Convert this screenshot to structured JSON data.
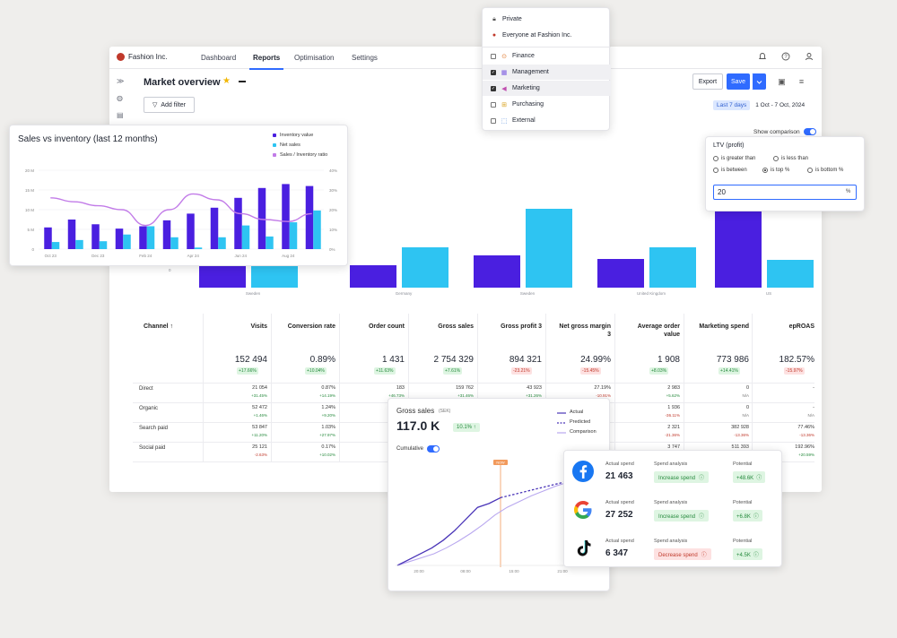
{
  "app": {
    "brand": "Fashion Inc.",
    "nav": [
      "Dashboard",
      "Reports",
      "Optimisation",
      "Settings"
    ],
    "active_nav": "Reports",
    "page_title": "Market overview",
    "add_filter": "Add filter",
    "export": "Export",
    "save": "Save",
    "date_preset": "Last 7 days",
    "date_range": "1 Oct - 7 Oct, 2024",
    "show_comparison": "Show comparison"
  },
  "bg_chart": {
    "categories": [
      "Sweden",
      "Germany",
      "Sweden",
      "United Kingdom",
      "US"
    ],
    "y_zero_label": "0"
  },
  "visibility_menu": {
    "items": [
      {
        "label": "Private",
        "icon": "lock-icon",
        "checkbox": false,
        "checked": false
      },
      {
        "label": "Everyone at Fashion Inc.",
        "icon": "org-icon",
        "checkbox": false,
        "checked": false
      },
      {
        "label": "Finance",
        "icon": "finance-icon",
        "checkbox": true,
        "checked": false
      },
      {
        "label": "Management",
        "icon": "management-icon",
        "checkbox": true,
        "checked": true
      },
      {
        "label": "Marketing",
        "icon": "megaphone-icon",
        "checkbox": true,
        "checked": true
      },
      {
        "label": "Purchasing",
        "icon": "cart-icon",
        "checkbox": true,
        "checked": false
      },
      {
        "label": "External",
        "icon": "external-icon",
        "checkbox": true,
        "checked": false
      }
    ]
  },
  "ltv": {
    "title": "LTV (profit)",
    "options": [
      "is greater than",
      "is less than",
      "is between",
      "is top %",
      "is bottom %"
    ],
    "selected": "is top %",
    "value": "20",
    "unit": "%"
  },
  "table": {
    "headers": [
      "Channel ↑",
      "Visits",
      "Conversion rate",
      "Order count",
      "Gross sales",
      "Gross profit 3",
      "Net gross margin 3",
      "Average order value",
      "Marketing spend",
      "epROAS"
    ],
    "totals": [
      {
        "value": "152 494",
        "change": "+17.66%",
        "dir": "up"
      },
      {
        "value": "0.89%",
        "change": "+10.04%",
        "dir": "up"
      },
      {
        "value": "1 431",
        "change": "+11.63%",
        "dir": "up"
      },
      {
        "value": "2 754 329",
        "change": "+7.61%",
        "dir": "up"
      },
      {
        "value": "894 321",
        "change": "-23.21%",
        "dir": "down"
      },
      {
        "value": "24.99%",
        "change": "-15.45%",
        "dir": "down"
      },
      {
        "value": "1 908",
        "change": "+8.03%",
        "dir": "up"
      },
      {
        "value": "773 986",
        "change": "+14.41%",
        "dir": "up"
      },
      {
        "value": "182.57%",
        "change": "-15.97%",
        "dir": "down"
      }
    ],
    "rows": [
      {
        "label": "Direct",
        "cells": [
          [
            "21 054",
            "+31.45%",
            "g"
          ],
          [
            "0.87%",
            "+14.19%",
            "g"
          ],
          [
            "183",
            "+46.73%",
            "g"
          ],
          [
            "159 762",
            "+31.46%",
            "g"
          ],
          [
            "43 923",
            "+31.26%",
            "g"
          ],
          [
            "27.19%",
            "-10.91%",
            "r"
          ],
          [
            "2 983",
            "+5.62%",
            "g"
          ],
          [
            "0",
            "N/A",
            "n"
          ],
          [
            "-",
            "",
            "n"
          ]
        ]
      },
      {
        "label": "Organic",
        "cells": [
          [
            "52 472",
            "+1.46%",
            "g"
          ],
          [
            "1.24%",
            "+9.20%",
            "g"
          ],
          [
            "",
            "",
            "n"
          ],
          [
            "",
            "",
            "n"
          ],
          [
            "",
            "",
            "n"
          ],
          [
            "",
            "",
            "n"
          ],
          [
            "1 936",
            "-36.11%",
            "r"
          ],
          [
            "0",
            "N/A",
            "n"
          ],
          [
            "-",
            "N/A",
            "n"
          ]
        ]
      },
      {
        "label": "Search paid",
        "cells": [
          [
            "53 847",
            "+11.20%",
            "g"
          ],
          [
            "1.03%",
            "+27.97%",
            "g"
          ],
          [
            "",
            "",
            "n"
          ],
          [
            "",
            "",
            "n"
          ],
          [
            "",
            "",
            "n"
          ],
          [
            "",
            "",
            "n"
          ],
          [
            "2 321",
            "-21.36%",
            "r"
          ],
          [
            "382 928",
            "-13.36%",
            "r"
          ],
          [
            "77.46%",
            "-13.36%",
            "r"
          ]
        ]
      },
      {
        "label": "Social paid",
        "cells": [
          [
            "25 121",
            "-2.63%",
            "r"
          ],
          [
            "0.17%",
            "+10.02%",
            "g"
          ],
          [
            "",
            "",
            "n"
          ],
          [
            "",
            "",
            "n"
          ],
          [
            "",
            "",
            "n"
          ],
          [
            "",
            "",
            "n"
          ],
          [
            "3 747",
            "",
            "n"
          ],
          [
            "511 393",
            "",
            "n"
          ],
          [
            "192.96%",
            "+20.59%",
            "g"
          ]
        ]
      }
    ]
  },
  "svi": {
    "title": "Sales vs inventory (last 12 months)",
    "legend": [
      {
        "name": "Inventory value",
        "color": "#4a1fe0"
      },
      {
        "name": "Net sales",
        "color": "#2ec4f2"
      },
      {
        "name": "Sales / Inventory ratio",
        "color": "#c27ce8"
      }
    ]
  },
  "chart_data": [
    {
      "type": "bar",
      "title": "Sales vs inventory (last 12 months)",
      "categories": [
        "Oct 23",
        "Nov 23",
        "Dec 23",
        "Jan 24",
        "Feb 24",
        "Mar 24",
        "Apr 24",
        "May 24",
        "Jun 24",
        "Jul 24",
        "Aug 24",
        "Sep 24"
      ],
      "x_tick_labels": [
        "Oct 23",
        "Dec 23",
        "Feb 24",
        "Apr 24",
        "Jun 24",
        "Aug 24"
      ],
      "y_left_ticks": [
        "0",
        "5 M",
        "10 M",
        "15 M",
        "20 M"
      ],
      "y_right_ticks": [
        "0%",
        "10%",
        "20%",
        "30%",
        "40%"
      ],
      "ylim": [
        0,
        20
      ],
      "y2lim": [
        0,
        40
      ],
      "series": [
        {
          "name": "Inventory value",
          "values": [
            5.5,
            7.5,
            6.3,
            5.2,
            5.8,
            7.3,
            9.0,
            10.5,
            13.0,
            15.5,
            16.5,
            16.0
          ]
        },
        {
          "name": "Net sales",
          "values": [
            1.8,
            2.3,
            2.0,
            3.7,
            5.8,
            3.0,
            0.4,
            3.0,
            6.0,
            3.2,
            6.8,
            9.8
          ]
        },
        {
          "name": "Sales / Inventory ratio",
          "values": [
            26,
            24,
            22,
            20,
            12,
            20,
            28,
            25,
            18,
            15,
            14,
            18
          ]
        }
      ]
    },
    {
      "type": "bar",
      "categories": [
        "Sweden",
        "Germany",
        "Sweden",
        "United Kingdom",
        "US"
      ],
      "series": [
        {
          "name": "",
          "values": [
            58,
            25,
            36,
            32,
            92
          ]
        },
        {
          "name": "",
          "values": [
            28,
            45,
            88,
            45,
            31
          ]
        }
      ]
    },
    {
      "type": "line",
      "title": "Gross sales",
      "x_tick_labels": [
        "20:00",
        "08:00",
        "15:00",
        "21:00"
      ],
      "series": [
        {
          "name": "Actual",
          "values": [
            0,
            6,
            12,
            18,
            26,
            36,
            48,
            60,
            64,
            70
          ]
        },
        {
          "name": "Predicted",
          "values": [
            70,
            74,
            78,
            82,
            86,
            90,
            94
          ]
        },
        {
          "name": "Comparison",
          "values": [
            0,
            4,
            8,
            12,
            18,
            25,
            33,
            42,
            52,
            60,
            66,
            72,
            77,
            82,
            86
          ]
        }
      ]
    }
  ],
  "gross": {
    "title": "Gross sales",
    "currency": "(SEK)",
    "value": "117.0 K",
    "change": "10.1% ↑",
    "legend": [
      "Actual",
      "Predicted",
      "Comparison"
    ],
    "cumulative": "Cumulative",
    "now_label": "NOW",
    "x_ticks": [
      "20:00",
      "08:00",
      "15:00",
      "21:00"
    ]
  },
  "spend": {
    "labels": {
      "actual": "Actual spend",
      "analysis": "Spend analysis",
      "potential": "Potential"
    },
    "rows": [
      {
        "platform": "facebook",
        "icon": "facebook-icon",
        "actual": "21 463",
        "analysis": "Increase spend",
        "dir": "inc",
        "potential": "+48.6K"
      },
      {
        "platform": "google",
        "icon": "google-icon",
        "actual": "27 252",
        "analysis": "Increase spend",
        "dir": "inc",
        "potential": "+6.8K"
      },
      {
        "platform": "tiktok",
        "icon": "tiktok-icon",
        "actual": "6 347",
        "analysis": "Decrease spend",
        "dir": "dec",
        "potential": "+4.5K"
      }
    ]
  }
}
